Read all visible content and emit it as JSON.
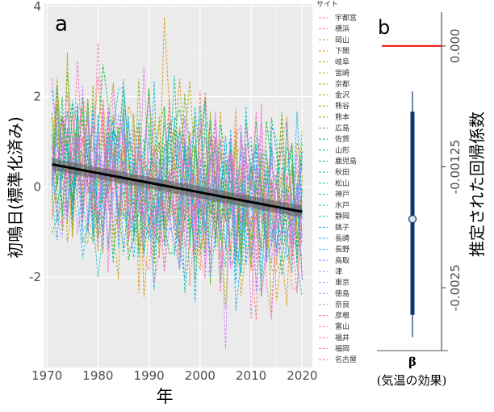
{
  "chart_data": [
    {
      "panel_label": "a",
      "type": "line",
      "xlabel": "年",
      "ylabel": "初鳴日(標準化済み)",
      "xlim": [
        1969.5,
        2022
      ],
      "ylim": [
        -4.0,
        4.05
      ],
      "x_ticks": [
        1970,
        1980,
        1990,
        2000,
        2010,
        2020
      ],
      "y_ticks": [
        -2,
        0,
        2,
        4
      ],
      "grid": true,
      "legend_title": "サイト",
      "legend_position": "right",
      "sites": [
        "宇都宮",
        "横浜",
        "岡山",
        "下関",
        "岐阜",
        "宮崎",
        "京都",
        "金沢",
        "熊谷",
        "熊本",
        "広島",
        "佐賀",
        "山形",
        "鹿児島",
        "秋田",
        "松山",
        "神戸",
        "水戸",
        "静岡",
        "銚子",
        "長崎",
        "長野",
        "鳥取",
        "津",
        "東京",
        "徳島",
        "奈良",
        "彦根",
        "富山",
        "福井",
        "福岡",
        "名古屋"
      ],
      "site_colors": [
        "#F8766D",
        "#F17D51",
        "#E7861B",
        "#DB8E00",
        "#CE9500",
        "#BF9C00",
        "#AFA100",
        "#9DA700",
        "#88AC00",
        "#6FB000",
        "#4FB400",
        "#00B81F",
        "#00BB4E",
        "#00BE6C",
        "#00C086",
        "#00C19C",
        "#00C0B2",
        "#00BDC6",
        "#00B8D8",
        "#00B3E8",
        "#00ABF5",
        "#00A3FF",
        "#619CFF",
        "#8F91FF",
        "#B385FF",
        "#CF78FF",
        "#E26EF7",
        "#EF67EB",
        "#F962DD",
        "#FF61CC",
        "#FF63B8",
        "#FF68A1"
      ],
      "series_start_year": 1971,
      "series_end_year": 2020,
      "trend": {
        "x": [
          1971,
          2020
        ],
        "y": [
          0.5,
          -0.55
        ],
        "color": "#000000"
      }
    },
    {
      "panel_label": "b",
      "type": "pointrange",
      "xlabel": "β\n(気温の効果)",
      "ylabel": "推定された回帰係数",
      "category": "β",
      "category_note": "(気温の効果)",
      "ylim": [
        -0.00315,
        0.00035
      ],
      "y_ticks": [
        0.0,
        -0.00125,
        -0.0025
      ],
      "y_tick_labels": [
        "0.000",
        "-0.00125",
        "-0.0025"
      ],
      "reference_line": {
        "value": 0.0,
        "color": "#E8150E"
      },
      "estimate": -0.00179,
      "interval_inner": [
        -0.00278,
        -0.00068
      ],
      "interval_outer": [
        -0.00301,
        -0.00047
      ],
      "interval_color": "#0E3770"
    }
  ]
}
